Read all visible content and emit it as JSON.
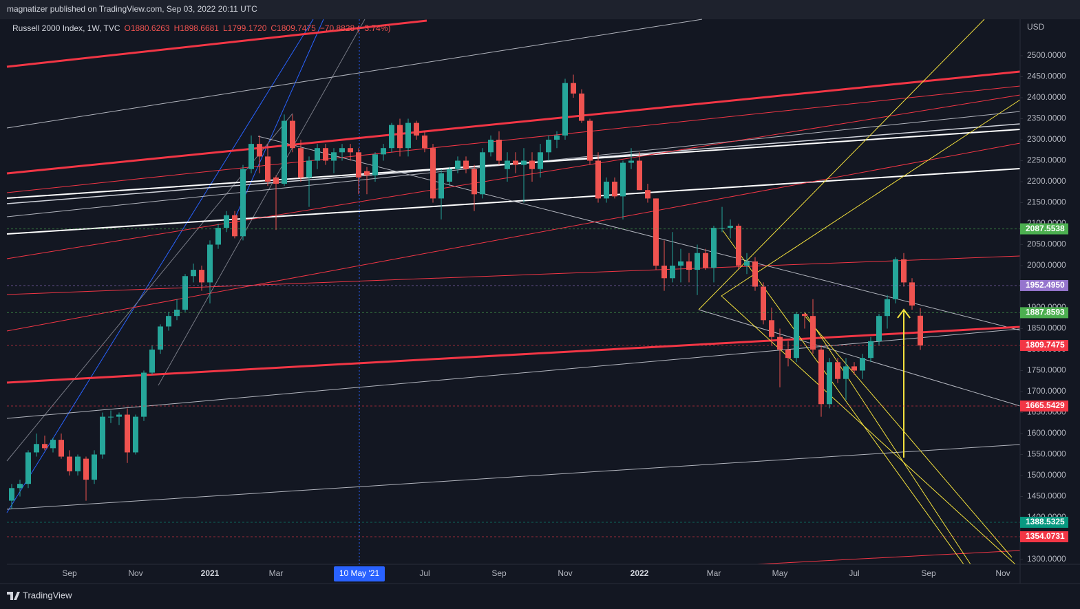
{
  "header": {
    "publisher": "magnatizer published on TradingView.com, Sep 03, 2022 20:11 UTC"
  },
  "chart_data": {
    "type": "candlestick",
    "title": "Russell 2000 Index, 1W, TVC",
    "ohlc_legend": [
      "O1880.6263",
      "H1898.6681",
      "L1799.1720",
      "C1809.7475",
      "−70.8828 (−3.74%)"
    ],
    "currency": "USD",
    "crosshair_label": "10 May '21",
    "categories": [
      null,
      null,
      null,
      null,
      null,
      null,
      null,
      "Sep",
      null,
      null,
      null,
      null,
      null,
      null,
      null,
      "Nov",
      null,
      null,
      null,
      null,
      null,
      null,
      null,
      null,
      "2021",
      null,
      null,
      null,
      null,
      null,
      null,
      null,
      "Mar",
      null,
      null,
      null,
      null,
      null,
      null,
      null,
      null,
      null,
      null,
      null,
      null,
      null,
      null,
      null,
      null,
      null,
      "Jul",
      null,
      null,
      null,
      null,
      null,
      null,
      null,
      null,
      "Sep",
      null,
      null,
      null,
      null,
      null,
      null,
      null,
      "Nov",
      null,
      null,
      null,
      null,
      null,
      null,
      null,
      null,
      "2022",
      null,
      null,
      null,
      null,
      null,
      null,
      null,
      null,
      "Mar",
      null,
      null,
      null,
      null,
      null,
      null,
      null,
      "May",
      null,
      null,
      null,
      null,
      null,
      null,
      null,
      null,
      "Jul",
      null,
      null,
      null,
      null,
      null,
      null,
      null,
      null,
      "Sep",
      null,
      null,
      null,
      null,
      null,
      null,
      null,
      null,
      "Nov"
    ],
    "open": [
      1440,
      1470,
      1480,
      1555,
      1575,
      1565,
      1585,
      1545,
      1510,
      1540,
      1490,
      1550,
      1640,
      1640,
      1645,
      1555,
      1640,
      1745,
      1800,
      1855,
      1880,
      1895,
      1975,
      1990,
      1960,
      2050,
      2090,
      2120,
      2070,
      2230,
      2290,
      2260,
      2210,
      2195,
      2345,
      2280,
      2210,
      2250,
      2280,
      2250,
      2270,
      2280,
      2270,
      2225,
      2215,
      2265,
      2280,
      2335,
      2280,
      2340,
      2310,
      2280,
      2160,
      2200,
      2230,
      2250,
      2230,
      2170,
      2270,
      2300,
      2230,
      2250,
      2240,
      2250,
      2230,
      2270,
      2300,
      2310,
      2435,
      2410,
      2345,
      2250,
      2160,
      2200,
      2165,
      2245,
      2250,
      2180,
      2160,
      2000,
      1970,
      2000,
      2010,
      1990,
      2030,
      1995,
      2090,
      2090,
      2095,
      2000,
      2010,
      1950,
      1870,
      1830,
      1800,
      1780,
      1885,
      1880,
      1800,
      1670,
      1770,
      1730,
      1760,
      1750,
      1780,
      1820,
      1880,
      1920,
      2015,
      1960,
      1880.6263,
      null,
      null,
      null,
      null,
      null,
      null,
      null,
      null,
      null,
      null
    ],
    "high": [
      1480,
      1490,
      1560,
      1600,
      1595,
      1590,
      1600,
      1560,
      1550,
      1545,
      1560,
      1650,
      1655,
      1650,
      1660,
      1645,
      1750,
      1810,
      1860,
      1890,
      1920,
      1980,
      2005,
      2000,
      2060,
      2100,
      2130,
      2130,
      2240,
      2310,
      2310,
      2290,
      2215,
      2360,
      2360,
      2300,
      2260,
      2290,
      2290,
      2280,
      2290,
      2290,
      2280,
      2235,
      2270,
      2290,
      2340,
      2350,
      2350,
      2345,
      2320,
      2290,
      2230,
      2235,
      2260,
      2260,
      2240,
      2280,
      2310,
      2320,
      2270,
      2270,
      2280,
      2270,
      2290,
      2310,
      2320,
      2445,
      2455,
      2420,
      2350,
      2270,
      2210,
      2210,
      2250,
      2280,
      2270,
      2195,
      2160,
      2060,
      2080,
      2040,
      2030,
      2050,
      2040,
      2095,
      2140,
      2110,
      2100,
      2030,
      2020,
      1960,
      1900,
      1850,
      1820,
      1890,
      1890,
      1920,
      1810,
      1780,
      1780,
      1780,
      1770,
      1790,
      1830,
      1885,
      1930,
      2020,
      2030,
      1970,
      1898.6681,
      null,
      null,
      null,
      null,
      null,
      null,
      null,
      null,
      null,
      null
    ],
    "low": [
      1420,
      1450,
      1470,
      1545,
      1560,
      1555,
      1540,
      1500,
      1500,
      1440,
      1480,
      1540,
      1625,
      1620,
      1530,
      1550,
      1630,
      1740,
      1790,
      1845,
      1870,
      1890,
      1960,
      1940,
      1910,
      2040,
      2080,
      2065,
      2060,
      2220,
      2220,
      2190,
      2085,
      2190,
      2270,
      2200,
      2140,
      2230,
      2240,
      2220,
      2250,
      2250,
      2170,
      2170,
      2200,
      2250,
      2270,
      2260,
      2260,
      2300,
      2270,
      2150,
      2110,
      2190,
      2220,
      2220,
      2130,
      2160,
      2260,
      2240,
      2200,
      2220,
      2150,
      2200,
      2210,
      2250,
      2280,
      2300,
      2400,
      2340,
      2240,
      2150,
      2150,
      2160,
      2110,
      2230,
      2180,
      2150,
      1990,
      1940,
      1960,
      1960,
      1960,
      1930,
      1990,
      1960,
      2080,
      2065,
      1990,
      1980,
      1940,
      1860,
      1810,
      1710,
      1760,
      1770,
      1850,
      1790,
      1640,
      1660,
      1720,
      1680,
      1740,
      1730,
      1770,
      1810,
      1850,
      1910,
      1950,
      1895,
      1799.172,
      null,
      null,
      null,
      null,
      null,
      null,
      null,
      null,
      null,
      null
    ],
    "close": [
      1470,
      1480,
      1555,
      1575,
      1565,
      1585,
      1545,
      1510,
      1545,
      1490,
      1550,
      1640,
      1640,
      1645,
      1555,
      1640,
      1745,
      1800,
      1855,
      1880,
      1895,
      1975,
      1990,
      1960,
      2050,
      2090,
      2120,
      2070,
      2230,
      2290,
      2260,
      2200,
      2195,
      2345,
      2280,
      2210,
      2250,
      2280,
      2250,
      2270,
      2280,
      2270,
      2210,
      2215,
      2265,
      2280,
      2335,
      2280,
      2340,
      2310,
      2280,
      2160,
      2220,
      2230,
      2250,
      2230,
      2170,
      2270,
      2300,
      2250,
      2250,
      2240,
      2250,
      2230,
      2270,
      2300,
      2310,
      2435,
      2410,
      2345,
      2250,
      2160,
      2200,
      2165,
      2245,
      2250,
      2180,
      2160,
      2000,
      1970,
      2000,
      2010,
      1990,
      2030,
      1995,
      2090,
      2090,
      2095,
      2000,
      2010,
      1950,
      1870,
      1830,
      1800,
      1780,
      1885,
      1880,
      1800,
      1670,
      1770,
      1730,
      1760,
      1750,
      1780,
      1820,
      1880,
      1920,
      2015,
      1960,
      1905,
      1809.7475,
      null,
      null,
      null,
      null,
      null,
      null,
      null,
      null,
      null,
      null
    ],
    "up_color": "#26a69a",
    "down_color": "#ef5350",
    "ylim": [
      1288.5,
      2586.9
    ],
    "yticks": [
      {
        "value": 1300,
        "label": "1300.0000"
      },
      {
        "value": 1350,
        "label": "1350.0000"
      },
      {
        "value": 1400,
        "label": "1400.0000"
      },
      {
        "value": 1450,
        "label": "1450.0000"
      },
      {
        "value": 1500,
        "label": "1500.0000"
      },
      {
        "value": 1550,
        "label": "1550.0000"
      },
      {
        "value": 1600,
        "label": "1600.0000"
      },
      {
        "value": 1650,
        "label": "1650.0000"
      },
      {
        "value": 1700,
        "label": "1700.0000"
      },
      {
        "value": 1750,
        "label": "1750.0000"
      },
      {
        "value": 1800,
        "label": "1800.0000"
      },
      {
        "value": 1850,
        "label": "1850.0000"
      },
      {
        "value": 1900,
        "label": "1900.0000"
      },
      {
        "value": 1950,
        "label": "1950.0000"
      },
      {
        "value": 2000,
        "label": "2000.0000"
      },
      {
        "value": 2050,
        "label": "2050.0000"
      },
      {
        "value": 2100,
        "label": "2100.0000"
      },
      {
        "value": 2150,
        "label": "2150.0000"
      },
      {
        "value": 2200,
        "label": "2200.0000"
      },
      {
        "value": 2250,
        "label": "2250.0000"
      },
      {
        "value": 2300,
        "label": "2300.0000"
      },
      {
        "value": 2350,
        "label": "2350.0000"
      },
      {
        "value": 2400,
        "label": "2400.0000"
      },
      {
        "value": 2450,
        "label": "2450.0000"
      },
      {
        "value": 2500,
        "label": "2500.0000"
      }
    ],
    "price_labels": [
      {
        "value": 2087.5538,
        "label": "2087.5538",
        "color": "#4caf50"
      },
      {
        "value": 1952.495,
        "label": "1952.4950",
        "color": "#9575cd"
      },
      {
        "value": 1887.8593,
        "label": "1887.8593",
        "color": "#4caf50"
      },
      {
        "value": 1809.7475,
        "label": "1809.7475",
        "color": "#f23645"
      },
      {
        "value": 1665.5429,
        "label": "1665.5429",
        "color": "#f23645"
      },
      {
        "value": 1388.5325,
        "label": "1388.5325",
        "color": "#089981"
      },
      {
        "value": 1354.0731,
        "label": "1354.0731",
        "color": "#f23645"
      }
    ]
  },
  "footer": {
    "brand": "TradingView"
  }
}
